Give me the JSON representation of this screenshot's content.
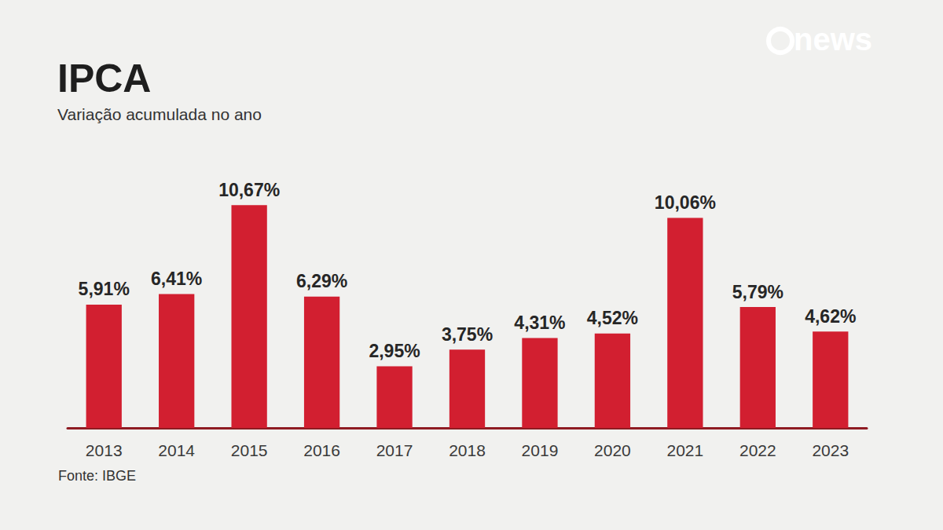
{
  "chart_data": {
    "type": "bar",
    "title": "IPCA",
    "subtitle": "Variação acumulada no ano",
    "source": "Fonte: IBGE",
    "logo": "news",
    "categories": [
      "2013",
      "2014",
      "2015",
      "2016",
      "2017",
      "2018",
      "2019",
      "2020",
      "2021",
      "2022",
      "2023"
    ],
    "values": [
      5.91,
      6.41,
      10.67,
      6.29,
      2.95,
      3.75,
      4.31,
      4.52,
      10.06,
      5.79,
      4.62
    ],
    "value_labels": [
      "5,91%",
      "6,41%",
      "10,67%",
      "6,29%",
      "2,95%",
      "3,75%",
      "4,31%",
      "4,52%",
      "10,06%",
      "5,79%",
      "4,62%"
    ],
    "color": "#d21f30",
    "ylim": [
      0,
      12
    ],
    "yticks": [
      0,
      12
    ],
    "grid": false,
    "data_labels": true,
    "tick_labels": "x"
  }
}
